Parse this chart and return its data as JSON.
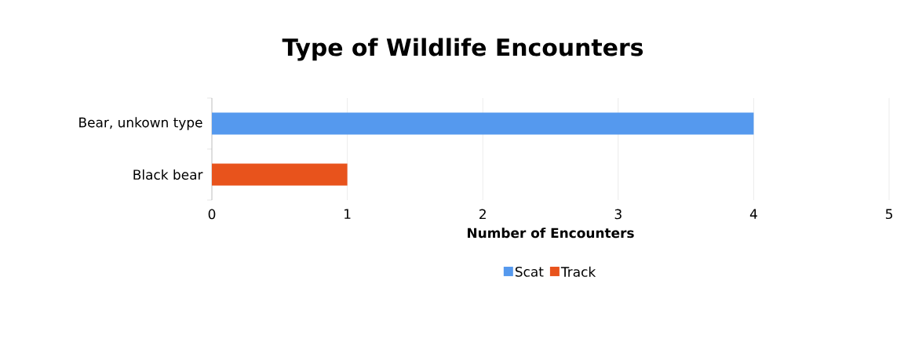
{
  "chart_data": {
    "type": "bar",
    "orientation": "horizontal",
    "stacked": true,
    "title": "Type of Wildlife Encounters",
    "xlabel": "Number of Encounters",
    "categories": [
      "Bear, unkown type",
      "Black bear"
    ],
    "series": [
      {
        "name": "Scat",
        "color": "#5599ee",
        "values": [
          4,
          null
        ]
      },
      {
        "name": "Track",
        "color": "#e8531c",
        "values": [
          null,
          1
        ]
      }
    ],
    "xlim": [
      0,
      5
    ],
    "xticks": [
      0,
      1,
      2,
      3,
      4,
      5
    ],
    "grid": "x",
    "legend": "bottom"
  }
}
